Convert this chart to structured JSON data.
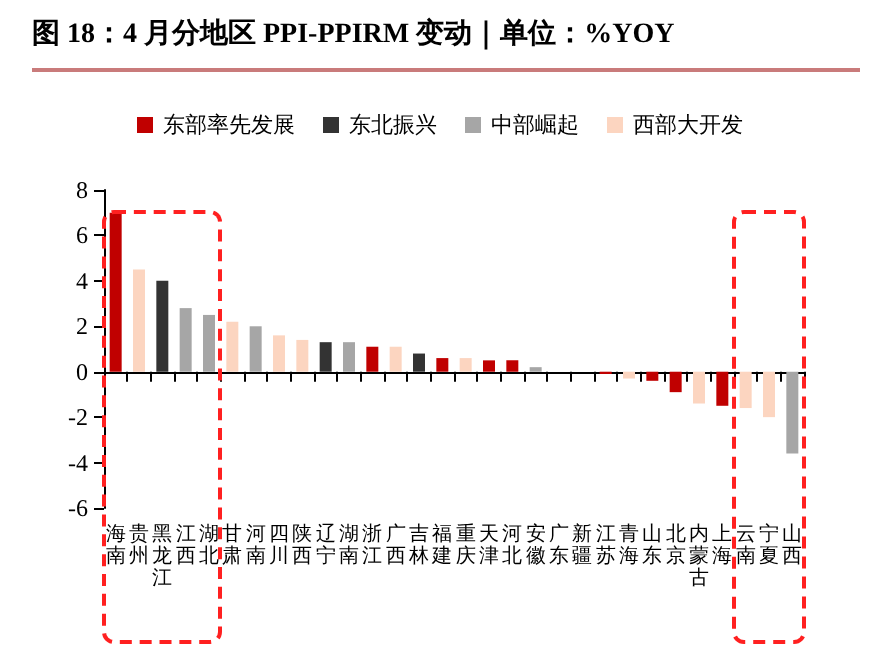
{
  "chart_data": {
    "type": "bar",
    "title": "图 18：4 月分地区 PPI-PPIRM 变动｜单位：%YOY",
    "categories": [
      "海南",
      "贵州",
      "黑龙江",
      "江西",
      "湖北",
      "甘肃",
      "河南",
      "四川",
      "陕西",
      "辽宁",
      "湖南",
      "浙江",
      "广西",
      "吉林",
      "福建",
      "重庆",
      "天津",
      "河北",
      "安徽",
      "广东",
      "新疆",
      "江苏",
      "青海",
      "山东",
      "北京",
      "内蒙古",
      "上海",
      "云南",
      "宁夏",
      "山西"
    ],
    "series": [
      {
        "name": "东部率先发展",
        "color": "#c00000",
        "values": [
          7.0,
          null,
          null,
          null,
          null,
          null,
          null,
          null,
          null,
          null,
          null,
          1.1,
          null,
          null,
          0.6,
          null,
          0.5,
          0.5,
          null,
          0.0,
          null,
          -0.1,
          null,
          -0.4,
          -0.9,
          null,
          -1.5,
          null,
          null,
          null
        ]
      },
      {
        "name": "东北振兴",
        "color": "#333333",
        "values": [
          null,
          null,
          4.0,
          null,
          null,
          null,
          null,
          null,
          null,
          1.3,
          null,
          null,
          null,
          0.8,
          null,
          null,
          null,
          null,
          null,
          null,
          null,
          null,
          null,
          null,
          null,
          null,
          null,
          null,
          null,
          null
        ]
      },
      {
        "name": "中部崛起",
        "color": "#a6a6a6",
        "values": [
          null,
          null,
          null,
          2.8,
          2.5,
          null,
          2.0,
          null,
          null,
          null,
          1.3,
          null,
          null,
          null,
          null,
          null,
          null,
          null,
          0.2,
          null,
          null,
          null,
          null,
          null,
          null,
          null,
          null,
          null,
          null,
          -3.6
        ]
      },
      {
        "name": "西部大开发",
        "color": "#fcd5c0",
        "values": [
          null,
          4.5,
          null,
          null,
          null,
          2.2,
          null,
          1.6,
          1.4,
          null,
          null,
          null,
          1.1,
          null,
          null,
          0.6,
          null,
          null,
          null,
          null,
          0.0,
          null,
          -0.3,
          null,
          null,
          -1.4,
          null,
          -1.6,
          -2.0,
          null
        ]
      }
    ],
    "ylim": [
      -6,
      8
    ],
    "yticks": [
      -6,
      -4,
      -2,
      0,
      2,
      4,
      6,
      8
    ],
    "legend": "top"
  }
}
